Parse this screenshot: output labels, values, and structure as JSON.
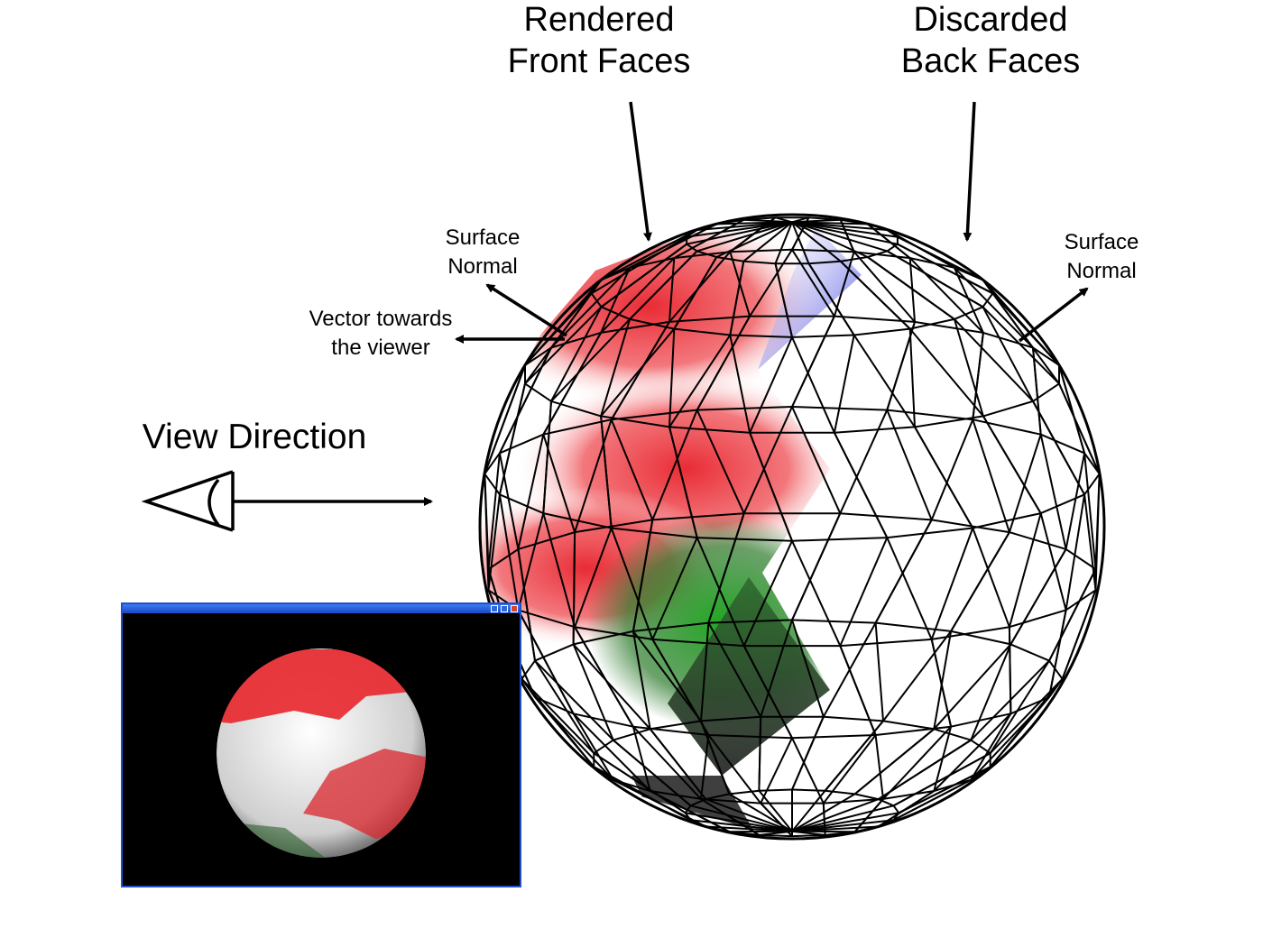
{
  "labels": {
    "rendered": "Rendered\nFront Faces",
    "discarded": "Discarded\nBack Faces",
    "surface_normal_left": "Surface\nNormal",
    "surface_normal_right": "Surface\nNormal",
    "vector_towards_viewer": "Vector towards\nthe viewer",
    "view_direction": "View Direction"
  },
  "colors": {
    "front_red": "#e8202a",
    "front_green": "#1f8a1f",
    "front_blue": "#3b3fe0",
    "front_dark": "#333333",
    "wire": "#000000",
    "window_border": "#1f4fc9"
  },
  "icons": {
    "eye": "eye-icon",
    "minimize": "minimize-icon",
    "maximize": "maximize-icon",
    "close": "close-icon"
  }
}
